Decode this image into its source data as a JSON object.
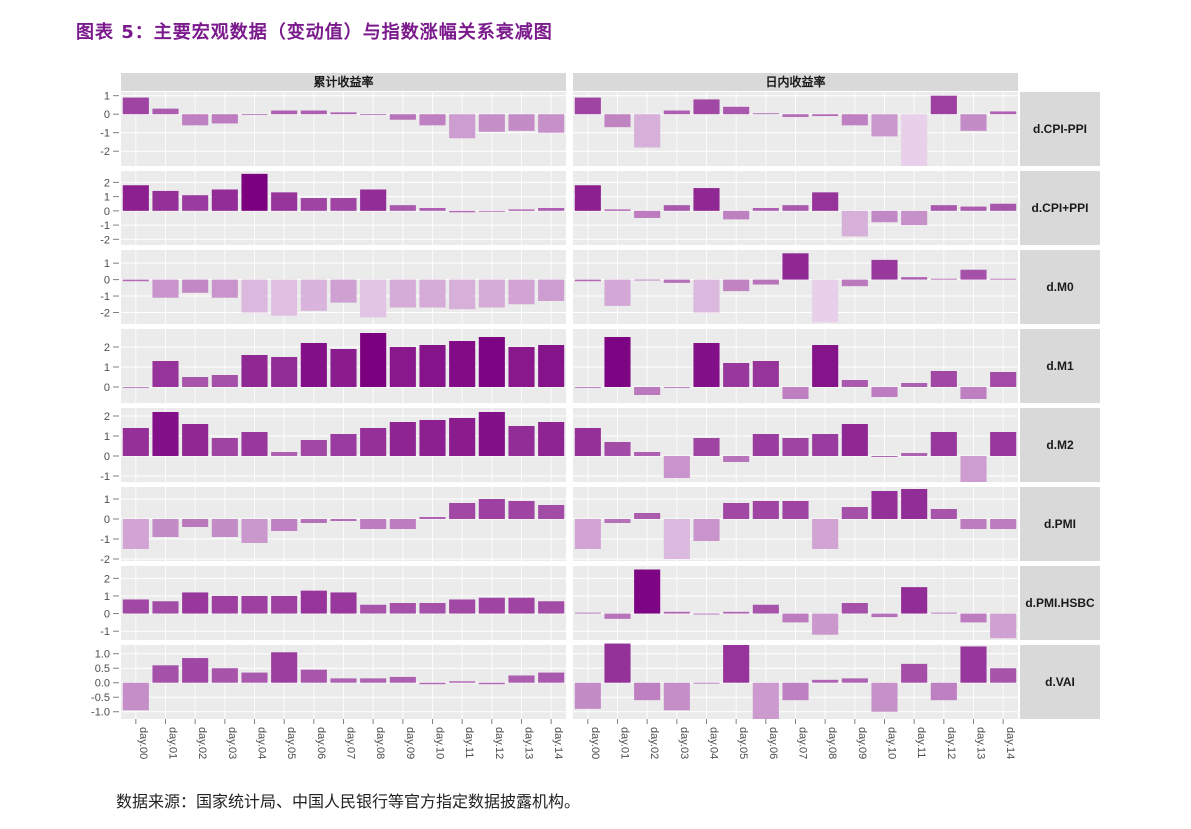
{
  "title": "图表 5：主要宏观数据（变动值）与指数涨幅关系衰减图",
  "source": "数据来源：国家统计局、中国人民银行等官方指定数据披露机构。",
  "colors": {
    "strong": "#7b0080",
    "weak": "#e8d0ea",
    "strip": "#d9d9d9",
    "panel": "#ebebeb",
    "grid": "#ffffff"
  },
  "chart_data": {
    "type": "bar",
    "facet_columns": [
      "累计收益率",
      "日内收益率"
    ],
    "facet_rows": [
      "d.CPI-PPI",
      "d.CPI+PPI",
      "d.M0",
      "d.M1",
      "d.M2",
      "d.PMI",
      "d.PMI.HSBC",
      "d.VAI"
    ],
    "categories": [
      "day.00",
      "day.01",
      "day.02",
      "day.03",
      "day.04",
      "day.05",
      "day.06",
      "day.07",
      "day.08",
      "day.09",
      "day.10",
      "day.11",
      "day.12",
      "day.13",
      "day.14"
    ],
    "panels": [
      {
        "row": "d.CPI-PPI",
        "y_ticks": [
          "1",
          "0",
          "-1",
          "-2"
        ],
        "y_tick_values": [
          1,
          0,
          -1,
          -2
        ],
        "ylim": [
          -2.8,
          1.2
        ],
        "cumulative": [
          0.9,
          0.3,
          -0.6,
          -0.5,
          0,
          0.2,
          0.2,
          0.1,
          0,
          -0.3,
          -0.6,
          -1.3,
          -0.95,
          -0.9,
          -1.0
        ],
        "intraday": [
          0.9,
          -0.7,
          -1.8,
          0.2,
          0.8,
          0.4,
          0.05,
          -0.15,
          -0.1,
          -0.6,
          -1.2,
          -2.8,
          1.0,
          -0.9,
          0.15
        ]
      },
      {
        "row": "d.CPI+PPI",
        "y_ticks": [
          "2",
          "1",
          "0",
          "-1",
          "-2"
        ],
        "y_tick_values": [
          2,
          1,
          0,
          -1,
          -2
        ],
        "ylim": [
          -2.4,
          2.8
        ],
        "cumulative": [
          1.8,
          1.4,
          1.1,
          1.5,
          2.6,
          1.3,
          0.9,
          0.9,
          1.5,
          0.4,
          0.2,
          -0.1,
          0,
          0.1,
          0.2
        ],
        "intraday": [
          1.8,
          0.1,
          -0.5,
          0.4,
          1.6,
          -0.6,
          0.2,
          0.4,
          1.3,
          -1.8,
          -0.8,
          -1.0,
          0.4,
          0.3,
          0.5
        ]
      },
      {
        "row": "d.M0",
        "y_ticks": [
          "1",
          "0",
          "-1",
          "-2"
        ],
        "y_tick_values": [
          1,
          0,
          -1,
          -2
        ],
        "ylim": [
          -2.7,
          1.8
        ],
        "cumulative": [
          -0.1,
          -1.1,
          -0.8,
          -1.1,
          -2.0,
          -2.2,
          -1.9,
          -1.4,
          -2.3,
          -1.7,
          -1.7,
          -1.8,
          -1.7,
          -1.5,
          -1.3
        ],
        "intraday": [
          -0.1,
          -1.6,
          -0.05,
          -0.2,
          -2.0,
          -0.7,
          -0.3,
          1.6,
          -2.6,
          -0.4,
          1.2,
          0.15,
          0.05,
          0.6,
          0.05
        ]
      },
      {
        "row": "d.M1",
        "y_ticks": [
          "2",
          "1",
          "0"
        ],
        "y_tick_values": [
          2,
          1,
          0
        ],
        "ylim": [
          -0.8,
          2.9
        ],
        "cumulative": [
          0,
          1.3,
          0.5,
          0.6,
          1.6,
          1.5,
          2.2,
          1.9,
          2.7,
          2.0,
          2.1,
          2.3,
          2.5,
          2.0,
          2.1
        ],
        "intraday": [
          0,
          2.5,
          -0.4,
          0,
          2.2,
          1.2,
          1.3,
          -0.6,
          2.1,
          0.35,
          -0.5,
          0.2,
          0.8,
          -0.6,
          0.75
        ]
      },
      {
        "row": "d.M2",
        "y_ticks": [
          "2",
          "1",
          "0",
          "-1"
        ],
        "y_tick_values": [
          2,
          1,
          0,
          -1
        ],
        "ylim": [
          -1.3,
          2.4
        ],
        "cumulative": [
          1.4,
          2.2,
          1.6,
          0.9,
          1.2,
          0.2,
          0.8,
          1.1,
          1.4,
          1.7,
          1.8,
          1.9,
          2.2,
          1.5,
          1.7
        ],
        "intraday": [
          1.4,
          0.7,
          0.2,
          -1.1,
          0.9,
          -0.3,
          1.1,
          0.9,
          1.1,
          1.6,
          -0.05,
          0.15,
          1.2,
          -1.3,
          1.2
        ]
      },
      {
        "row": "d.PMI",
        "y_ticks": [
          "1",
          "0",
          "-1",
          "-2"
        ],
        "y_tick_values": [
          1,
          0,
          -1,
          -2
        ],
        "ylim": [
          -2.1,
          1.6
        ],
        "cumulative": [
          -1.5,
          -0.9,
          -0.4,
          -0.9,
          -1.2,
          -0.6,
          -0.2,
          -0.1,
          -0.5,
          -0.5,
          0.1,
          0.8,
          1.0,
          0.9,
          0.7
        ],
        "intraday": [
          -1.5,
          -0.2,
          0.3,
          -2.0,
          -1.1,
          0.8,
          0.9,
          0.9,
          -1.5,
          0.6,
          1.4,
          1.5,
          0.5,
          -0.5,
          -0.5
        ]
      },
      {
        "row": "d.PMI.HSBC",
        "y_ticks": [
          "2",
          "1",
          "0",
          "-1"
        ],
        "y_tick_values": [
          2,
          1,
          0,
          -1
        ],
        "ylim": [
          -1.5,
          2.7
        ],
        "cumulative": [
          0.8,
          0.7,
          1.2,
          1.0,
          1.0,
          1.0,
          1.3,
          1.2,
          0.5,
          0.6,
          0.6,
          0.8,
          0.9,
          0.9,
          0.7
        ],
        "intraday": [
          0.05,
          -0.3,
          2.5,
          0.1,
          -0.05,
          0.1,
          0.5,
          -0.5,
          -1.2,
          0.6,
          -0.2,
          1.5,
          0.05,
          -0.5,
          -1.4
        ]
      },
      {
        "row": "d.VAI",
        "y_ticks": [
          "1.0",
          "0.5",
          "0.0",
          "-0.5",
          "-1.0"
        ],
        "y_tick_values": [
          1.0,
          0.5,
          0.0,
          -0.5,
          -1.0
        ],
        "ylim": [
          -1.25,
          1.3
        ],
        "cumulative": [
          -0.95,
          0.6,
          0.85,
          0.5,
          0.35,
          1.05,
          0.45,
          0.15,
          0.15,
          0.2,
          -0.05,
          0.05,
          -0.05,
          0.25,
          0.35
        ],
        "intraday": [
          -0.9,
          1.35,
          -0.6,
          -0.95,
          0,
          1.3,
          -1.25,
          -0.6,
          0.1,
          0.15,
          -1.0,
          0.65,
          -0.6,
          1.25,
          0.5
        ]
      }
    ]
  }
}
